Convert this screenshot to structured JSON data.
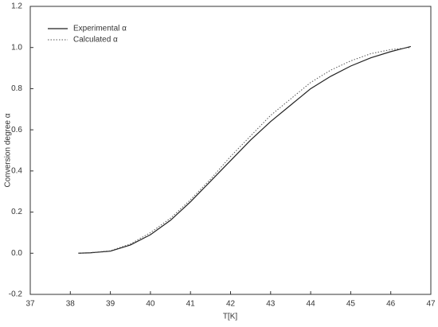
{
  "chart_data": {
    "type": "line",
    "xlabel": "T[K]",
    "ylabel": "Conversion  degree α",
    "x": [
      38.2,
      38.5,
      39,
      39.5,
      40,
      40.5,
      41,
      41.5,
      42,
      42.5,
      43,
      43.5,
      44,
      44.5,
      45,
      45.5,
      46,
      46.5
    ],
    "series": [
      {
        "name": "Experimental α",
        "color": "#222222",
        "dash": false,
        "values": [
          0,
          0.002,
          0.01,
          0.04,
          0.09,
          0.16,
          0.25,
          0.35,
          0.45,
          0.55,
          0.64,
          0.72,
          0.8,
          0.86,
          0.91,
          0.95,
          0.98,
          1.005
        ]
      },
      {
        "name": "Calculated α",
        "color": "#555555",
        "dash": true,
        "values": [
          0,
          0.003,
          0.012,
          0.045,
          0.1,
          0.17,
          0.26,
          0.36,
          0.47,
          0.57,
          0.67,
          0.75,
          0.83,
          0.89,
          0.935,
          0.97,
          0.99,
          1.0
        ]
      }
    ],
    "xlim": [
      37,
      47
    ],
    "xticks": [
      37,
      38,
      39,
      40,
      41,
      42,
      43,
      44,
      45,
      46,
      47
    ],
    "ylim": [
      -0.2,
      1.2
    ],
    "yticks": [
      -0.2,
      {
        "value": 0,
        "label": "0.0"
      },
      0.2,
      0.4,
      0.6,
      0.8,
      {
        "value": 1,
        "label": "1.0"
      },
      1.2
    ],
    "legend": "upper left"
  }
}
